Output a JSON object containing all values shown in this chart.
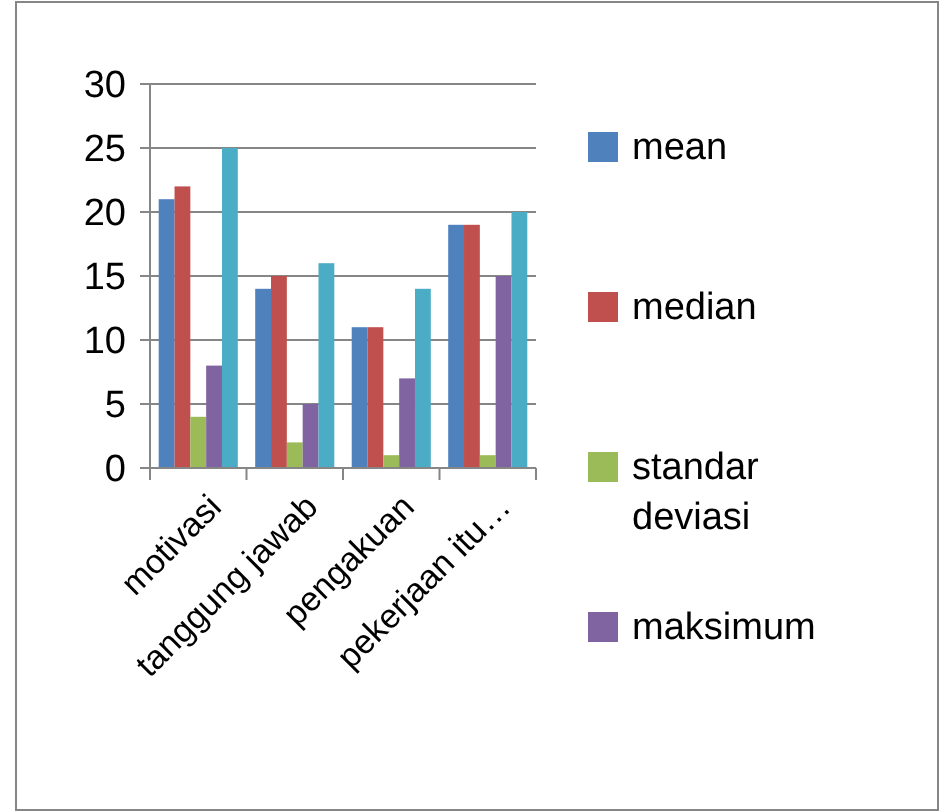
{
  "chart_data": {
    "type": "bar",
    "categories": [
      "motivasi",
      "tanggung jawab",
      "pengakuan",
      "pekerjaan itu…"
    ],
    "series": [
      {
        "name": "mean",
        "color": "#4f81bd",
        "values": [
          21,
          14,
          11,
          19
        ]
      },
      {
        "name": "median",
        "color": "#c0504d",
        "values": [
          22,
          15,
          11,
          19
        ]
      },
      {
        "name": "standar deviasi",
        "color": "#9bbb59",
        "values": [
          4,
          2,
          1,
          1
        ]
      },
      {
        "name": "maksimum",
        "color": "#8064a2",
        "values": [
          8,
          5,
          7,
          15
        ]
      },
      {
        "color": "#4bacc6",
        "values": [
          25,
          16,
          14,
          20
        ]
      }
    ],
    "ylim": [
      0,
      30
    ],
    "yticks": [
      0,
      5,
      10,
      15,
      20,
      25,
      30
    ],
    "grid": "y",
    "legend": "right"
  }
}
